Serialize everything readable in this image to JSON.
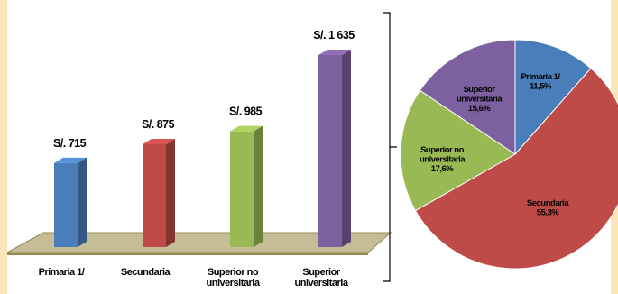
{
  "chart_data": [
    {
      "type": "bar",
      "categories": [
        [
          "Primaria 1/"
        ],
        [
          "Secundaria"
        ],
        [
          "Superior no",
          "universitaria"
        ],
        [
          "Superior",
          "universitaria"
        ]
      ],
      "values": [
        715,
        875,
        985,
        1635
      ],
      "data_labels": [
        "S/. 715",
        "S/. 875",
        "S/. 985",
        "S/. 1 635"
      ],
      "colors": [
        "#4a7ebb",
        "#be4b48",
        "#98b954",
        "#7d60a0"
      ],
      "grid": false,
      "legend": "none"
    },
    {
      "type": "pie",
      "slices": [
        {
          "label": [
            "Primaria 1/",
            "11,5%"
          ],
          "value": 11.5,
          "color": "#4a7ebb"
        },
        {
          "label": [
            "Secundaria",
            "55,3%"
          ],
          "value": 55.3,
          "color": "#be4b48"
        },
        {
          "label": [
            "Superior no",
            "universitaria",
            "17,6%"
          ],
          "value": 17.6,
          "color": "#98b954"
        },
        {
          "label": [
            "Superior",
            "universitaria",
            "15,6%"
          ],
          "value": 15.6,
          "color": "#7d60a0"
        }
      ],
      "legend": "none"
    }
  ]
}
